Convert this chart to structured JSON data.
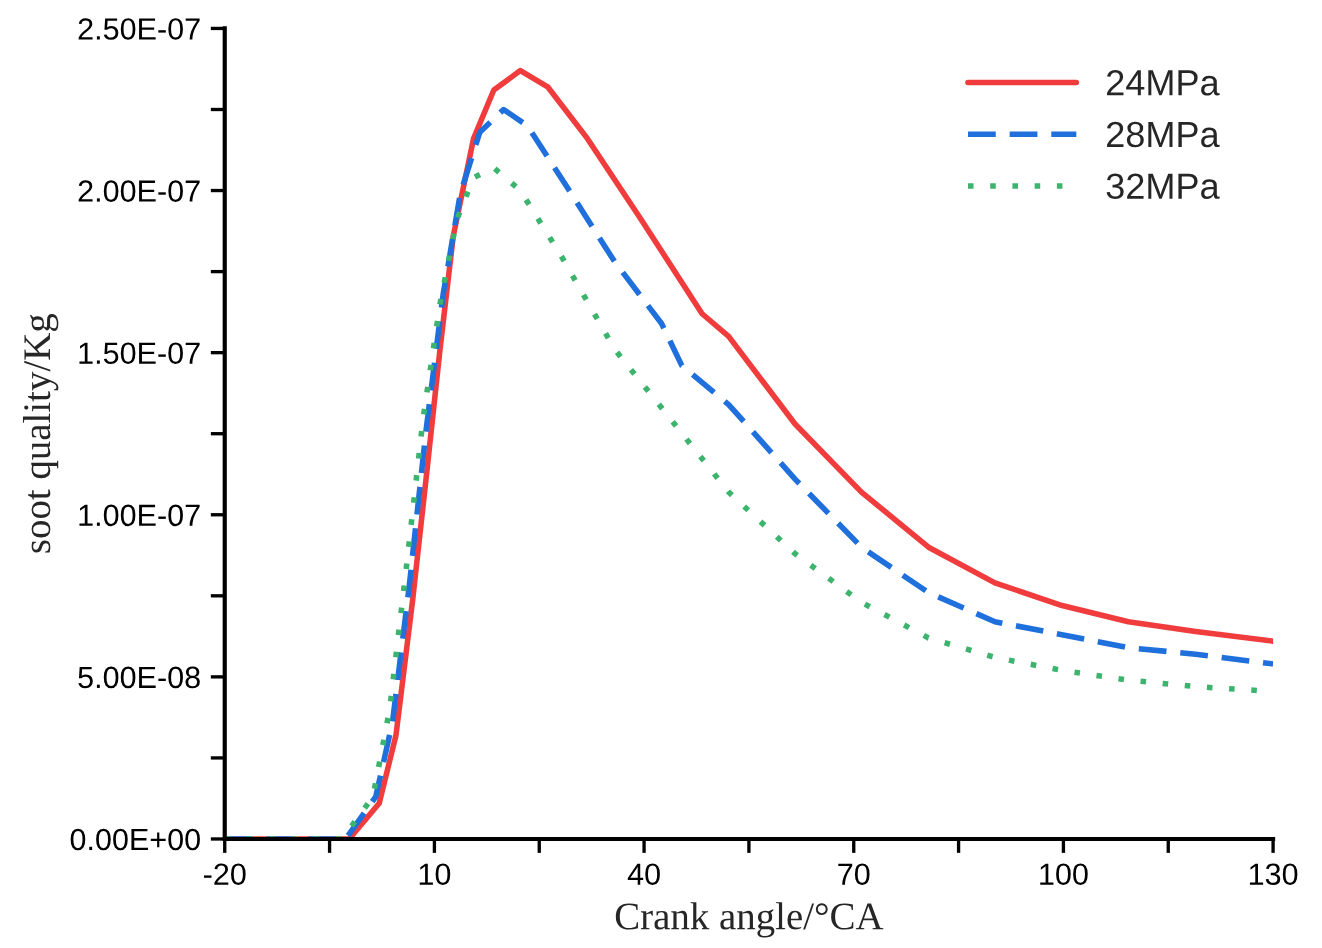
{
  "chart_data": {
    "type": "line",
    "xlabel": "Crank angle/°CA",
    "ylabel": "soot quality/Kg",
    "xlim": [
      -20,
      130
    ],
    "ylim": [
      0,
      2.5e-07
    ],
    "xticks": [
      -20,
      {
        "value": -5,
        "label": null
      },
      10,
      {
        "value": 25,
        "label": null
      },
      40,
      {
        "value": 55,
        "label": null
      },
      70,
      {
        "value": 85,
        "label": null
      },
      100,
      {
        "value": 115,
        "label": null
      },
      130
    ],
    "yticks": [
      {
        "value": 0,
        "label": "0.00E+00"
      },
      {
        "value": 2.5e-08,
        "label": null
      },
      {
        "value": 5e-08,
        "label": "5.00E-08"
      },
      {
        "value": 7.5e-08,
        "label": null
      },
      {
        "value": 1e-07,
        "label": "1.00E-07"
      },
      {
        "value": 1.25e-07,
        "label": null
      },
      {
        "value": 1.5e-07,
        "label": "1.50E-07"
      },
      {
        "value": 1.75e-07,
        "label": null
      },
      {
        "value": 2e-07,
        "label": "2.00E-07"
      },
      {
        "value": 2.25e-07,
        "label": null
      },
      {
        "value": 2.5e-07,
        "label": "2.50E-07"
      }
    ],
    "grid": false,
    "legend": "top right",
    "marker": "none",
    "series": [
      {
        "name": "24MPa",
        "color": "#f03c3c",
        "line_style": "solid",
        "x": [
          -20,
          -2.2,
          2.1,
          4.5,
          6.9,
          8.8,
          10.8,
          12.7,
          15.6,
          18.5,
          22.3,
          26.2,
          31.9,
          39.6,
          48.3,
          52.1,
          61.6,
          71.1,
          80.7,
          90.2,
          99.8,
          109.3,
          118.9,
          130
        ],
        "values": [
          0,
          0,
          1.1e-08,
          3.2e-08,
          7.4e-08,
          1.11e-07,
          1.51e-07,
          1.86e-07,
          2.16e-07,
          2.31e-07,
          2.37e-07,
          2.32e-07,
          2.16e-07,
          1.91e-07,
          1.62e-07,
          1.55e-07,
          1.28e-07,
          1.07e-07,
          9e-08,
          7.9e-08,
          7.2e-08,
          6.7e-08,
          6.4e-08,
          6.1e-08
        ]
      },
      {
        "name": "28MPa",
        "color": "#1f6fdc",
        "line_style": "dashed",
        "x": [
          -20,
          -2.7,
          1.6,
          4.0,
          6.4,
          8.8,
          11.25,
          13.7,
          16.5,
          19.9,
          23.3,
          29.0,
          35.8,
          42.5,
          45.4,
          52.1,
          61.6,
          71.1,
          80.7,
          90.2,
          99.8,
          109.3,
          118.9,
          130
        ],
        "values": [
          0,
          0,
          1.3e-08,
          3.6e-08,
          7.8e-08,
          1.26e-07,
          1.68e-07,
          1.99e-07,
          2.18e-07,
          2.25e-07,
          2.2e-07,
          2.01e-07,
          1.78e-07,
          1.59e-07,
          1.46e-07,
          1.34e-07,
          1.11e-07,
          9e-08,
          7.6e-08,
          6.7e-08,
          6.3e-08,
          5.9e-08,
          5.7e-08,
          5.4e-08
        ]
      },
      {
        "name": "32MPa",
        "color": "#3cb46e",
        "line_style": "dotted",
        "x": [
          -20,
          -3.2,
          1.2,
          3.6,
          6.0,
          8.4,
          10.8,
          13.2,
          15.6,
          18.5,
          22.3,
          28.1,
          35.8,
          42.5,
          47.3,
          52.1,
          61.6,
          71.1,
          80.7,
          90.2,
          99.8,
          109.3,
          118.9,
          130
        ],
        "values": [
          0,
          0,
          1.3e-08,
          4e-08,
          8.4e-08,
          1.3e-07,
          1.65e-07,
          1.91e-07,
          2.04e-07,
          2.07e-07,
          2e-07,
          1.8e-07,
          1.51e-07,
          1.33e-07,
          1.2e-07,
          1.07e-07,
          8.8e-08,
          7.3e-08,
          6.2e-08,
          5.6e-08,
          5.2e-08,
          4.9e-08,
          4.7e-08,
          4.55e-08
        ]
      }
    ]
  }
}
